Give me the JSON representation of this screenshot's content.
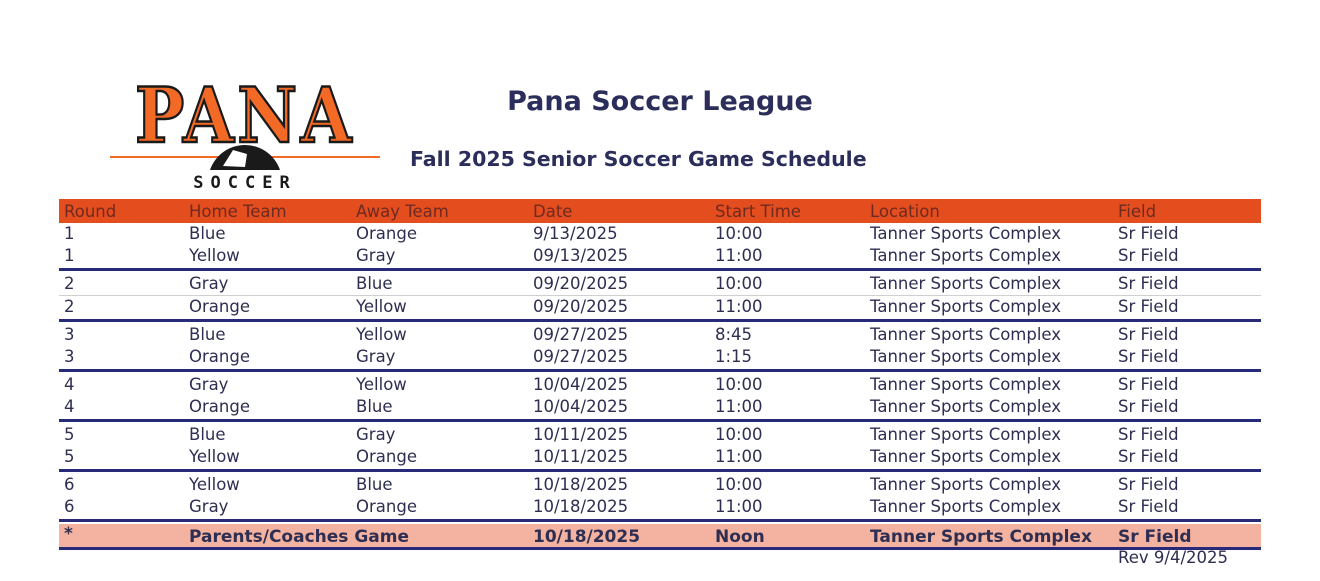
{
  "logo": {
    "text": "PANA",
    "subtext": "SOCCER"
  },
  "header": {
    "title": "Pana Soccer League",
    "subtitle": "Fall 2025 Senior Soccer Game Schedule"
  },
  "colors": {
    "header_bg": "#e44d1e",
    "separator": "#262a78",
    "special_bg": "#f4b3a0",
    "text": "#2e2e52"
  },
  "table": {
    "columns": [
      "Round",
      "Home Team",
      "Away Team",
      "Date",
      "Start Time",
      "Location",
      "Field"
    ],
    "groups": [
      [
        [
          "1",
          "Blue",
          "Orange",
          "9/13/2025",
          "10:00",
          "Tanner Sports Complex",
          "Sr Field"
        ],
        [
          "1",
          "Yellow",
          "Gray",
          "09/13/2025",
          "11:00",
          "Tanner Sports Complex",
          "Sr Field"
        ]
      ],
      [
        [
          "2",
          "Gray",
          "Blue",
          "09/20/2025",
          "10:00",
          "Tanner Sports Complex",
          "Sr Field"
        ],
        [
          "2",
          "Orange",
          "Yellow",
          "09/20/2025",
          "11:00",
          "Tanner Sports Complex",
          "Sr Field"
        ]
      ],
      [
        [
          "3",
          "Blue",
          "Yellow",
          "09/27/2025",
          "8:45",
          "Tanner Sports Complex",
          "Sr Field"
        ],
        [
          "3",
          "Orange",
          "Gray",
          "09/27/2025",
          "1:15",
          "Tanner Sports Complex",
          "Sr Field"
        ]
      ],
      [
        [
          "4",
          "Gray",
          "Yellow",
          "10/04/2025",
          "10:00",
          "Tanner Sports Complex",
          "Sr Field"
        ],
        [
          "4",
          "Orange",
          "Blue",
          "10/04/2025",
          "11:00",
          "Tanner Sports Complex",
          "Sr Field"
        ]
      ],
      [
        [
          "5",
          "Blue",
          "Gray",
          "10/11/2025",
          "10:00",
          "Tanner Sports Complex",
          "Sr Field"
        ],
        [
          "5",
          "Yellow",
          "Orange",
          "10/11/2025",
          "11:00",
          "Tanner Sports Complex",
          "Sr Field"
        ]
      ],
      [
        [
          "6",
          "Yellow",
          "Blue",
          "10/18/2025",
          "10:00",
          "Tanner Sports Complex",
          "Sr Field"
        ],
        [
          "6",
          "Gray",
          "Orange",
          "10/18/2025",
          "11:00",
          "Tanner Sports Complex",
          "Sr Field"
        ]
      ]
    ],
    "special": {
      "round": "*",
      "event": "Parents/Coaches Game",
      "date": "10/18/2025",
      "time": "Noon",
      "location": "Tanner Sports Complex",
      "field": "Sr Field"
    }
  },
  "footer": {
    "revision": "Rev 9/4/2025"
  }
}
